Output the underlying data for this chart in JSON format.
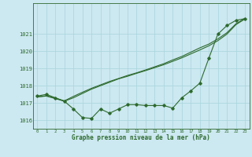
{
  "xlabel": "Graphe pression niveau de la mer (hPa)",
  "background_color": "#cce8f0",
  "grid_color": "#a8d4dc",
  "line_color": "#2d6a2d",
  "x_ticks": [
    0,
    1,
    2,
    3,
    4,
    5,
    6,
    7,
    8,
    9,
    10,
    11,
    12,
    13,
    14,
    15,
    16,
    17,
    18,
    19,
    20,
    21,
    22,
    23
  ],
  "ylim": [
    1015.5,
    1022.8
  ],
  "y_ticks": [
    1016,
    1017,
    1018,
    1019,
    1020,
    1021
  ],
  "series1": [
    1017.4,
    1017.5,
    1017.3,
    1017.1,
    1016.65,
    1016.15,
    1016.1,
    1016.65,
    1016.4,
    1016.65,
    1016.9,
    1016.9,
    1016.85,
    1016.85,
    1016.85,
    1016.7,
    1017.3,
    1017.7,
    1018.15,
    1019.6,
    1021.0,
    1021.5,
    1021.8,
    1021.9
  ],
  "series2": [
    1017.35,
    1017.4,
    1017.25,
    1017.1,
    1017.3,
    1017.55,
    1017.8,
    1018.0,
    1018.2,
    1018.4,
    1018.55,
    1018.72,
    1018.88,
    1019.05,
    1019.22,
    1019.42,
    1019.62,
    1019.85,
    1020.08,
    1020.32,
    1020.62,
    1021.0,
    1021.55,
    1021.88
  ],
  "series3": [
    1017.35,
    1017.42,
    1017.28,
    1017.12,
    1017.38,
    1017.62,
    1017.85,
    1018.05,
    1018.25,
    1018.42,
    1018.6,
    1018.75,
    1018.92,
    1019.1,
    1019.28,
    1019.5,
    1019.7,
    1019.95,
    1020.2,
    1020.42,
    1020.72,
    1021.08,
    1021.6,
    1021.92
  ]
}
